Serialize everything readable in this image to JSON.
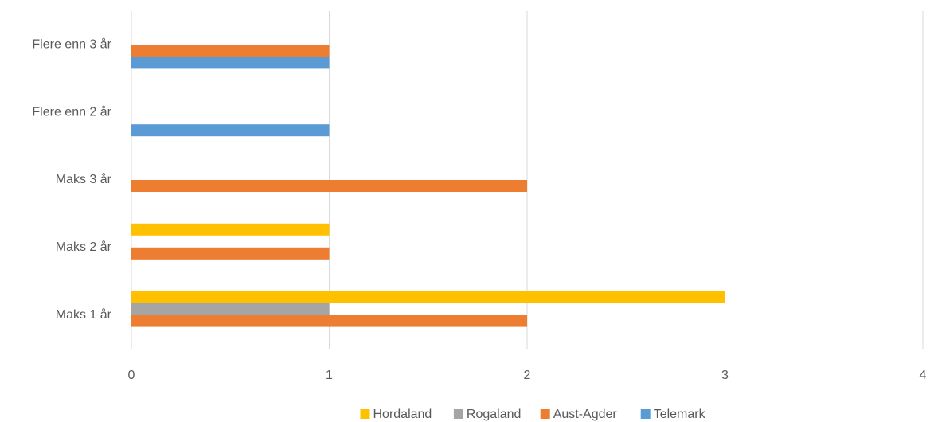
{
  "chart_data": {
    "type": "barh",
    "categories": [
      "Maks 1 år",
      "Maks 2 år",
      "Maks 3 år",
      "Flere enn 2 år",
      "Flere enn 3 år"
    ],
    "series": [
      {
        "name": "Hordaland",
        "color": "#ffc000",
        "values": [
          3,
          1,
          0,
          0,
          0
        ]
      },
      {
        "name": "Rogaland",
        "color": "#a5a5a5",
        "values": [
          1,
          0,
          0,
          0,
          0
        ]
      },
      {
        "name": "Aust-Agder",
        "color": "#ed7d31",
        "values": [
          2,
          1,
          2,
          0,
          1
        ]
      },
      {
        "name": "Telemark",
        "color": "#5b9bd5",
        "values": [
          0,
          0,
          0,
          1,
          1
        ]
      }
    ],
    "xlim": [
      0,
      4
    ],
    "xticks": [
      0,
      1,
      2,
      3,
      4
    ],
    "grid": true,
    "legend": "bottom"
  }
}
